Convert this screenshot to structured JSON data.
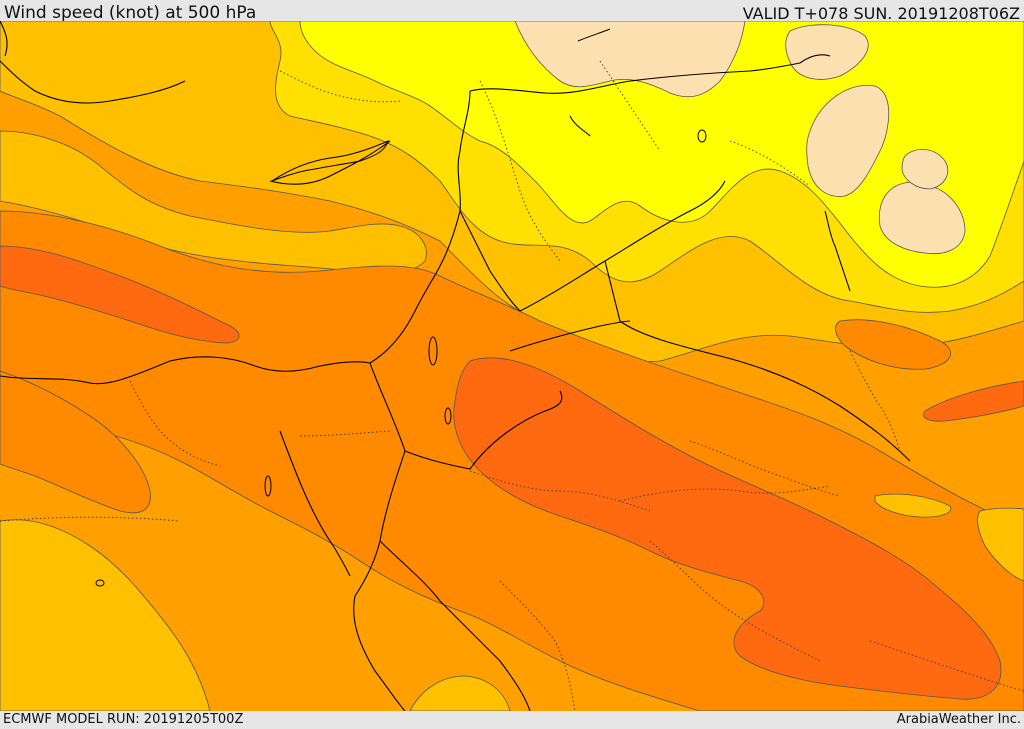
{
  "header": {
    "title": "Wind speed (knot) at 500 hPa",
    "valid_time": "VALID T+078 SUN. 20191208T06Z"
  },
  "footer": {
    "model_run": "ECMWF MODEL RUN: 20191205T00Z",
    "credit": "ArabiaWeather Inc."
  },
  "colors": {
    "band_very_light": "#fde0b0",
    "band_yellow": "#ffff00",
    "band_gold": "#ffe000",
    "band_amber": "#ffc000",
    "band_orange_light": "#ffa000",
    "band_orange": "#ff8a00",
    "band_orange_dark": "#ff6a10",
    "coastline": "#000000",
    "contour": "#555555"
  }
}
